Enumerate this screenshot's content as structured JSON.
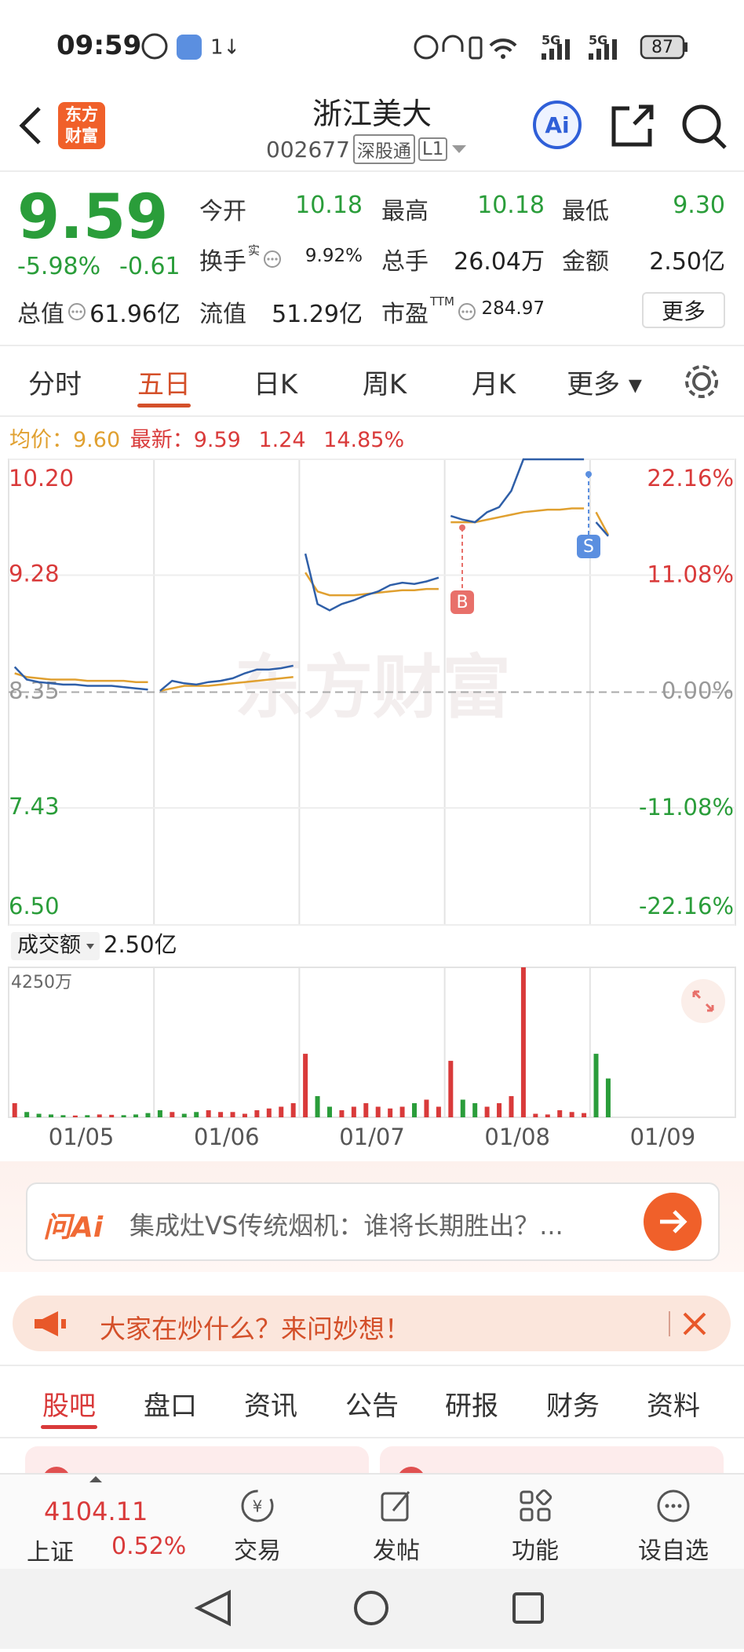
{
  "status_bar": {
    "time": "09:59",
    "network_1": "5G",
    "network_2": "5G",
    "battery": "87"
  },
  "header": {
    "logo_lines": [
      "东方",
      "财富"
    ],
    "title": "浙江美大",
    "code": "002677",
    "badge_1": "深股通",
    "badge_2": "L1",
    "ai_button": "Ai"
  },
  "quote": {
    "price": "9.59",
    "change_pct": "-5.98%",
    "change": "-0.61",
    "color": "#2a9d3a",
    "market_cap": {
      "label": "总值",
      "value": "61.96亿",
      "info_icon": true
    },
    "grid": [
      [
        {
          "label": "今开",
          "value": "10.18",
          "color": "#2a9d3a"
        },
        {
          "label": "最高",
          "value": "10.18",
          "color": "#2a9d3a"
        },
        {
          "label": "最低",
          "value": "9.30",
          "color": "#2a9d3a"
        }
      ],
      [
        {
          "label": "换手",
          "sup": "实",
          "info_icon": true,
          "value": "9.92%",
          "color": "#222222",
          "small": true
        },
        {
          "label": "总手",
          "value": "26.04万",
          "color": "#222222"
        },
        {
          "label": "金额",
          "value": "2.50亿",
          "color": "#222222"
        }
      ],
      [
        {
          "label": "流值",
          "value": "51.29亿",
          "color": "#222222"
        },
        {
          "label": "市盈",
          "sup": "TTM",
          "info_icon": true,
          "value": "284.97",
          "color": "#222222",
          "small": true
        }
      ]
    ],
    "more": "更多"
  },
  "period_tabs": {
    "items": [
      "分时",
      "五日",
      "日K",
      "周K",
      "月K",
      "更多"
    ],
    "active": 1
  },
  "chart": {
    "info": {
      "avg_label": "均价：",
      "avg": "9.60",
      "last_label": "最新：",
      "last": "9.59",
      "change": "1.24",
      "change_pct": "14.85%"
    },
    "watermark": "东方财富",
    "days": [
      "01/05",
      "01/06",
      "01/07",
      "01/08",
      "01/09"
    ],
    "samples_per_day": 12,
    "ylim": [
      6.5,
      10.2
    ],
    "yticks": [
      {
        "value": 10.2,
        "label": "10.20"
      },
      9.28,
      8.35,
      7.43,
      {
        "value": 6.5,
        "label": "6.50"
      }
    ],
    "y2lim": [
      -22.16,
      22.16
    ],
    "y2ticks": [
      {
        "value": 22.16,
        "label": "22.16%"
      },
      {
        "value": 11.08,
        "label": "11.08%"
      },
      {
        "value": 0,
        "label": "0.00%"
      },
      {
        "value": -11.08,
        "label": "-11.08%"
      },
      {
        "value": -22.16,
        "label": "-22.16%"
      }
    ],
    "up_color": "#d93a3a",
    "down_color": "#2a9d3a",
    "flat_color": "#999999",
    "series": [
      {
        "name": "price",
        "color": "#2f5fa8",
        "values": [
          8.55,
          8.45,
          8.43,
          8.42,
          8.41,
          8.41,
          8.4,
          8.4,
          8.4,
          8.39,
          8.38,
          8.37,
          8.36,
          8.44,
          8.42,
          8.41,
          8.43,
          8.44,
          8.46,
          8.5,
          8.53,
          8.53,
          8.54,
          8.56,
          9.45,
          9.05,
          9.0,
          9.05,
          9.08,
          9.12,
          9.15,
          9.2,
          9.22,
          9.21,
          9.23,
          9.26,
          9.75,
          9.72,
          9.7,
          9.78,
          9.82,
          9.95,
          10.2,
          10.2,
          10.2,
          10.2,
          10.2,
          10.2,
          9.7,
          9.59,
          null,
          null,
          null,
          null,
          null,
          null,
          null,
          null,
          null,
          null
        ]
      },
      {
        "name": "average",
        "color": "#e0a030",
        "values": [
          8.5,
          8.47,
          8.46,
          8.45,
          8.45,
          8.45,
          8.44,
          8.44,
          8.44,
          8.44,
          8.43,
          8.43,
          8.36,
          8.38,
          8.4,
          8.4,
          8.4,
          8.41,
          8.42,
          8.43,
          8.44,
          8.45,
          8.46,
          8.47,
          9.3,
          9.15,
          9.12,
          9.12,
          9.12,
          9.13,
          9.14,
          9.15,
          9.16,
          9.16,
          9.17,
          9.17,
          9.7,
          9.7,
          9.7,
          9.72,
          9.74,
          9.76,
          9.78,
          9.79,
          9.8,
          9.8,
          9.81,
          9.81,
          9.78,
          9.6,
          null,
          null,
          null,
          null,
          null,
          null,
          null,
          null,
          null,
          null
        ]
      }
    ],
    "annotations": [
      {
        "text": "B",
        "color": "#e8706a"
      },
      {
        "text": "S",
        "color": "#5b8fe0"
      }
    ],
    "volume": {
      "label": "成交额",
      "total": "2.50亿",
      "ylim": [
        0,
        4250
      ],
      "yticks": [
        {
          "value": 4250,
          "label": "4250万"
        }
      ],
      "values": [
        400,
        150,
        100,
        80,
        60,
        50,
        60,
        80,
        70,
        60,
        80,
        120,
        200,
        150,
        100,
        150,
        200,
        150,
        150,
        100,
        200,
        250,
        300,
        400,
        1800,
        600,
        300,
        200,
        300,
        400,
        300,
        250,
        300,
        400,
        500,
        300,
        1600,
        500,
        400,
        300,
        400,
        600,
        4250,
        100,
        80,
        200,
        150,
        120,
        1800,
        1100,
        null,
        null,
        null,
        null,
        null,
        null,
        null,
        null,
        null,
        null
      ]
    }
  },
  "ask_ai": {
    "logo": "问Ai",
    "text": "集成灶VS传统烟机：谁将长期胜出？..."
  },
  "banner": {
    "text": "大家在炒什么？来问妙想！"
  },
  "content_tabs": {
    "items": [
      "股吧",
      "盘口",
      "资讯",
      "公告",
      "研报",
      "财务",
      "资料"
    ],
    "active": 0
  },
  "bottom_bar": {
    "index_value": "4104.11",
    "index_name": "上证",
    "index_change": "0.52%",
    "actions": [
      "交易",
      "发帖",
      "功能",
      "设自选"
    ]
  }
}
